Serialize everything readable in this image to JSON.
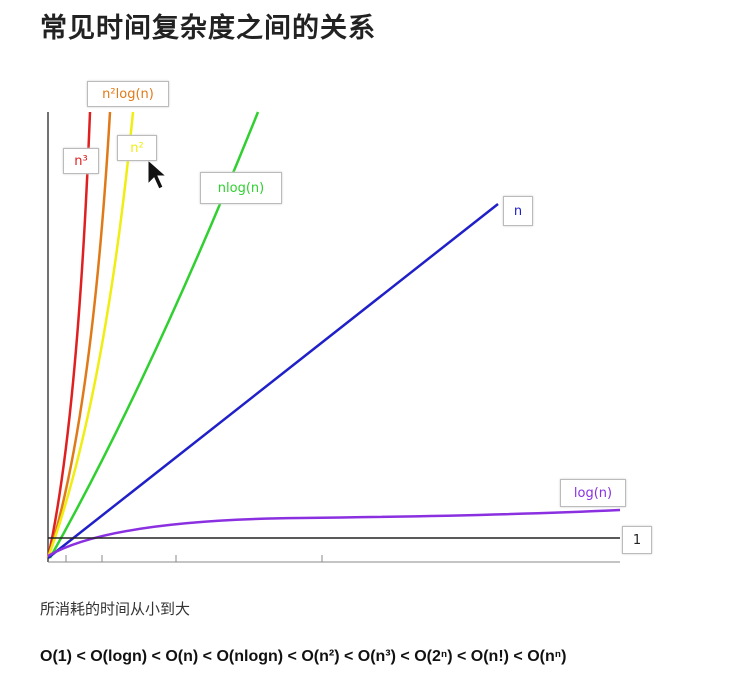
{
  "title": "常见时间复杂度之间的关系",
  "caption": "所消耗的时间从小到大",
  "order": "O(1) < O(logn) < O(n) < O(nlogn) < O(n²) < O(n³) < O(2ⁿ) < O(n!) < O(nⁿ)",
  "chart_data": {
    "type": "line",
    "title": "",
    "xlabel": "",
    "ylabel": "",
    "grid": false,
    "series": [
      {
        "name": "n³",
        "color": "#e02020"
      },
      {
        "name": "n²log(n)",
        "color": "#e07a18"
      },
      {
        "name": "n²",
        "color": "#f0ee10"
      },
      {
        "name": "nlog(n)",
        "color": "#30d030"
      },
      {
        "name": "n",
        "color": "#2020c8"
      },
      {
        "name": "log(n)",
        "color": "#8a30e0"
      },
      {
        "name": "1",
        "color": "#222222"
      }
    ]
  }
}
